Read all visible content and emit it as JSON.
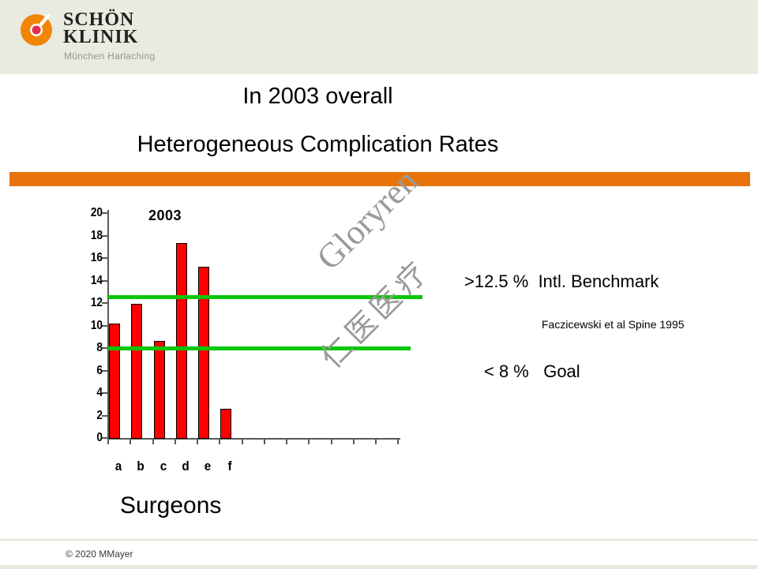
{
  "colors": {
    "header_bg": "#e9eae0",
    "divider_orange": "#e8730a",
    "logo_orange": "#f08506",
    "logo_red": "#e42d4d",
    "bar_red": "#fe0000",
    "goal_green": "#0ac60a",
    "axis_gray": "#595959",
    "watermark_gray": "#9a9a9a"
  },
  "header": {
    "logo": {
      "name_line1": "SCHÖN",
      "name_line2": "KLINIK",
      "subtitle": "München Harlaching"
    }
  },
  "title": {
    "line1": "In 2003 overall",
    "line2": "Heterogeneous Complication Rates"
  },
  "chart_data": {
    "type": "bar",
    "title": "2003",
    "categories": [
      "a",
      "b",
      "c",
      "d",
      "e",
      "f"
    ],
    "values": [
      10.2,
      11.9,
      8.6,
      17.3,
      15.2,
      2.6
    ],
    "xlabel": "Surgeons",
    "ylabel": "",
    "ylim": [
      0,
      20
    ],
    "ytick_step": 2,
    "x_axis_tick_count": 14,
    "grid": false,
    "legend": "none",
    "bar_color": "#fe0000",
    "bar_border_color": "#000000",
    "reference_lines": [
      {
        "value": 12.5,
        "label": ">12.5 %  Intl. Benchmark",
        "color": "#0ac60a"
      },
      {
        "value": 8,
        "label": "< 8 %   Goal",
        "color": "#0ac60a"
      }
    ]
  },
  "annotations": {
    "citation": "Faczicewski et al Spine 1995"
  },
  "watermark": {
    "line1": "Gloryren",
    "line2": "仁医医疗"
  },
  "footer": {
    "copyright": "© 2020 MMayer"
  }
}
